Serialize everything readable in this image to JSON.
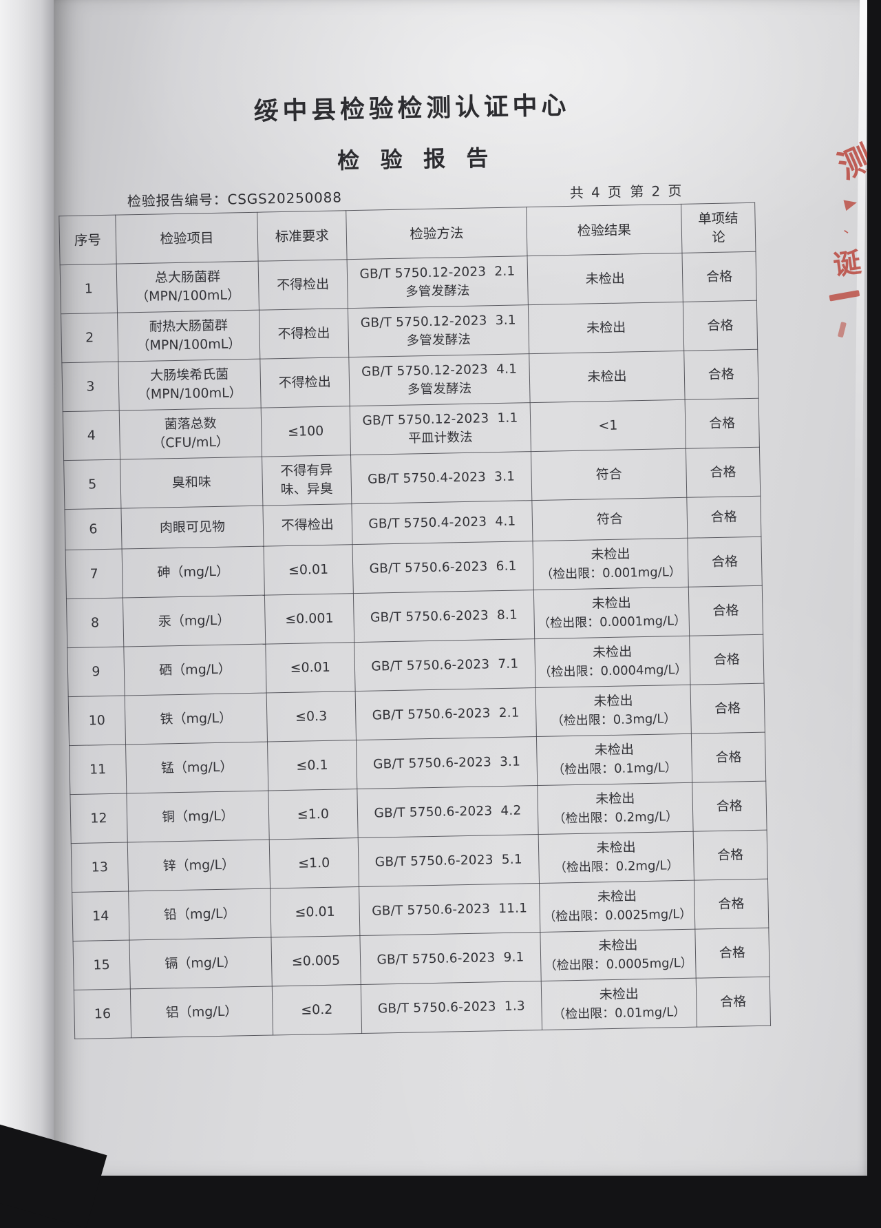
{
  "page": {
    "org_title": "绥中县检验检测认证中心",
    "report_title": "检验报告",
    "report_no_label": "检验报告编号：",
    "report_no": "CSGS20250088",
    "pages_total": "共 4 页",
    "page_current": "第 2 页",
    "stamp_chars": [
      "测",
      "、",
      "诞"
    ]
  },
  "table": {
    "headers": [
      "序号",
      "检验项目",
      "标准要求",
      "检验方法",
      "检验结果",
      "单项结论"
    ],
    "rows": [
      {
        "no": "1",
        "item_lines": [
          "总大肠菌群",
          "（MPN/100mL）"
        ],
        "standard_lines": [
          "不得检出"
        ],
        "method_lines": [
          "GB/T 5750.12-2023  2.1",
          "多管发酵法"
        ],
        "result_lines": [
          "未检出"
        ],
        "conclusion": "合格"
      },
      {
        "no": "2",
        "item_lines": [
          "耐热大肠菌群",
          "（MPN/100mL）"
        ],
        "standard_lines": [
          "不得检出"
        ],
        "method_lines": [
          "GB/T 5750.12-2023  3.1",
          "多管发酵法"
        ],
        "result_lines": [
          "未检出"
        ],
        "conclusion": "合格"
      },
      {
        "no": "3",
        "item_lines": [
          "大肠埃希氏菌",
          "（MPN/100mL）"
        ],
        "standard_lines": [
          "不得检出"
        ],
        "method_lines": [
          "GB/T 5750.12-2023  4.1",
          "多管发酵法"
        ],
        "result_lines": [
          "未检出"
        ],
        "conclusion": "合格"
      },
      {
        "no": "4",
        "item_lines": [
          "菌落总数",
          "（CFU/mL）"
        ],
        "standard_lines": [
          "≤100"
        ],
        "method_lines": [
          "GB/T 5750.12-2023  1.1",
          "平皿计数法"
        ],
        "result_lines": [
          "<1"
        ],
        "conclusion": "合格"
      },
      {
        "no": "5",
        "item_lines": [
          "臭和味"
        ],
        "standard_lines": [
          "不得有异",
          "味、异臭"
        ],
        "method_lines": [
          "GB/T 5750.4-2023  3.1"
        ],
        "result_lines": [
          "符合"
        ],
        "conclusion": "合格"
      },
      {
        "no": "6",
        "item_lines": [
          "肉眼可见物"
        ],
        "standard_lines": [
          "不得检出"
        ],
        "method_lines": [
          "GB/T 5750.4-2023  4.1"
        ],
        "result_lines": [
          "符合"
        ],
        "conclusion": "合格"
      },
      {
        "no": "7",
        "item_lines": [
          "砷（mg/L）"
        ],
        "standard_lines": [
          "≤0.01"
        ],
        "method_lines": [
          "GB/T 5750.6-2023  6.1"
        ],
        "result_lines": [
          "未检出",
          "（检出限：0.001mg/L）"
        ],
        "conclusion": "合格"
      },
      {
        "no": "8",
        "item_lines": [
          "汞（mg/L）"
        ],
        "standard_lines": [
          "≤0.001"
        ],
        "method_lines": [
          "GB/T 5750.6-2023  8.1"
        ],
        "result_lines": [
          "未检出",
          "（检出限：0.0001mg/L）"
        ],
        "conclusion": "合格"
      },
      {
        "no": "9",
        "item_lines": [
          "硒（mg/L）"
        ],
        "standard_lines": [
          "≤0.01"
        ],
        "method_lines": [
          "GB/T 5750.6-2023  7.1"
        ],
        "result_lines": [
          "未检出",
          "（检出限：0.0004mg/L）"
        ],
        "conclusion": "合格"
      },
      {
        "no": "10",
        "item_lines": [
          "铁（mg/L）"
        ],
        "standard_lines": [
          "≤0.3"
        ],
        "method_lines": [
          "GB/T 5750.6-2023  2.1"
        ],
        "result_lines": [
          "未检出",
          "（检出限：0.3mg/L）"
        ],
        "conclusion": "合格"
      },
      {
        "no": "11",
        "item_lines": [
          "锰（mg/L）"
        ],
        "standard_lines": [
          "≤0.1"
        ],
        "method_lines": [
          "GB/T 5750.6-2023  3.1"
        ],
        "result_lines": [
          "未检出",
          "（检出限：0.1mg/L）"
        ],
        "conclusion": "合格"
      },
      {
        "no": "12",
        "item_lines": [
          "铜（mg/L）"
        ],
        "standard_lines": [
          "≤1.0"
        ],
        "method_lines": [
          "GB/T 5750.6-2023  4.2"
        ],
        "result_lines": [
          "未检出",
          "（检出限：0.2mg/L）"
        ],
        "conclusion": "合格"
      },
      {
        "no": "13",
        "item_lines": [
          "锌（mg/L）"
        ],
        "standard_lines": [
          "≤1.0"
        ],
        "method_lines": [
          "GB/T 5750.6-2023  5.1"
        ],
        "result_lines": [
          "未检出",
          "（检出限：0.2mg/L）"
        ],
        "conclusion": "合格"
      },
      {
        "no": "14",
        "item_lines": [
          "铅（mg/L）"
        ],
        "standard_lines": [
          "≤0.01"
        ],
        "method_lines": [
          "GB/T 5750.6-2023  11.1"
        ],
        "result_lines": [
          "未检出",
          "（检出限：0.0025mg/L）"
        ],
        "conclusion": "合格"
      },
      {
        "no": "15",
        "item_lines": [
          "镉（mg/L）"
        ],
        "standard_lines": [
          "≤0.005"
        ],
        "method_lines": [
          "GB/T 5750.6-2023  9.1"
        ],
        "result_lines": [
          "未检出",
          "（检出限：0.0005mg/L）"
        ],
        "conclusion": "合格"
      },
      {
        "no": "16",
        "item_lines": [
          "铝（mg/L）"
        ],
        "standard_lines": [
          "≤0.2"
        ],
        "method_lines": [
          "GB/T 5750.6-2023  1.3"
        ],
        "result_lines": [
          "未检出",
          "（检出限：0.01mg/L）"
        ],
        "conclusion": "合格"
      }
    ]
  }
}
